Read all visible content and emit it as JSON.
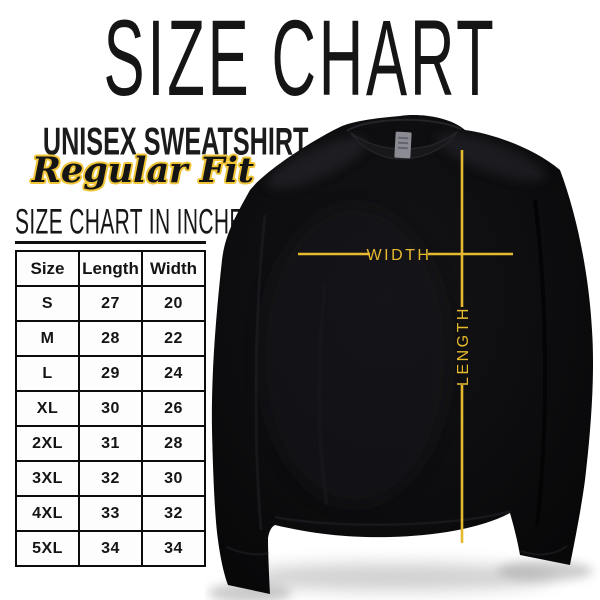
{
  "title": "SIZE CHART",
  "product": {
    "name": "UNISEX SWEATSHIRT",
    "fit": "Regular Fit"
  },
  "table_section": {
    "heading": "SIZE CHART IN INCHES"
  },
  "size_table": {
    "headers": [
      "Size",
      "Length",
      "Width"
    ],
    "rows": [
      [
        "S",
        "27",
        "20"
      ],
      [
        "M",
        "28",
        "22"
      ],
      [
        "L",
        "29",
        "24"
      ],
      [
        "XL",
        "30",
        "26"
      ],
      [
        "2XL",
        "31",
        "28"
      ],
      [
        "3XL",
        "32",
        "30"
      ],
      [
        "4XL",
        "33",
        "32"
      ],
      [
        "5XL",
        "34",
        "34"
      ]
    ]
  },
  "diagram": {
    "width_label": "WIDTH",
    "length_label": "LENGTH",
    "garment": "black-crewneck-sweatshirt"
  },
  "colors": {
    "background": "#ffffff",
    "text_black": "#151515",
    "accent_gold": "#e6ba2e",
    "script_outline_gold": "#efc437",
    "garment_black": "#0b0b0d",
    "collar_tag_gray": "#8b8b93",
    "table_border": "#0c0c0c"
  }
}
